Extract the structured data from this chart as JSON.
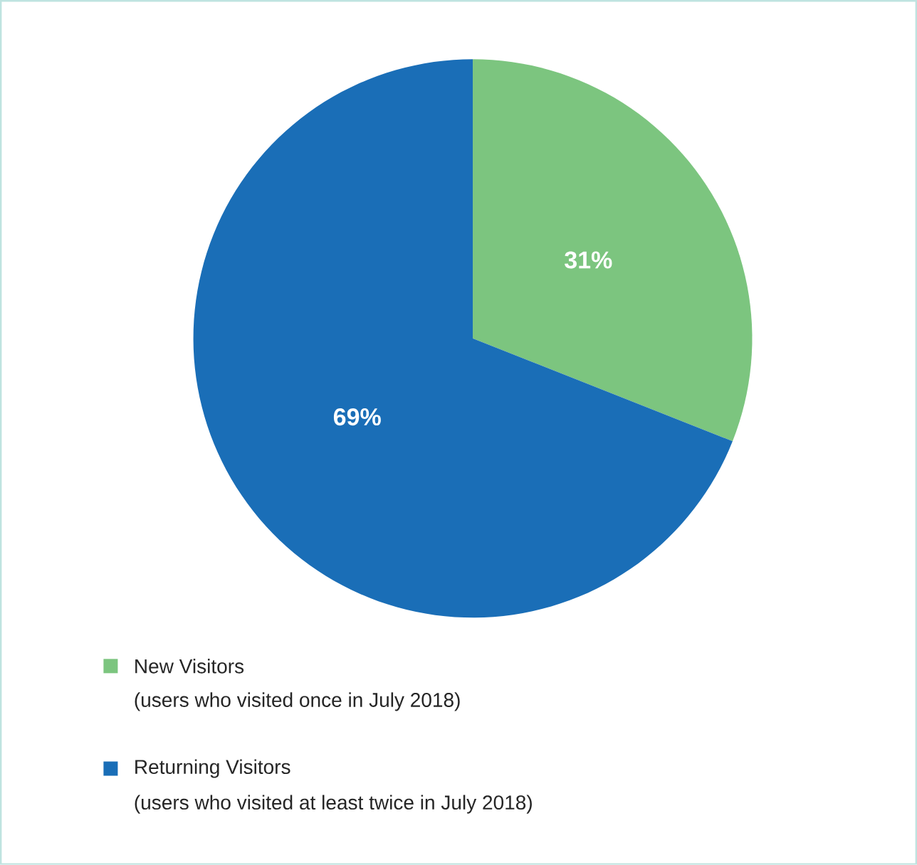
{
  "chart_data": {
    "type": "pie",
    "categories": [
      "New Visitors",
      "Returning Visitors"
    ],
    "values": [
      31,
      69
    ],
    "colors": [
      "#7cc57f",
      "#1a6eb7"
    ],
    "value_labels": [
      "31%",
      "69%"
    ],
    "legend": "bottom",
    "annotations": [
      "(users who visited once in July 2018)",
      "(users who visited at least twice in July 2018)"
    ]
  }
}
